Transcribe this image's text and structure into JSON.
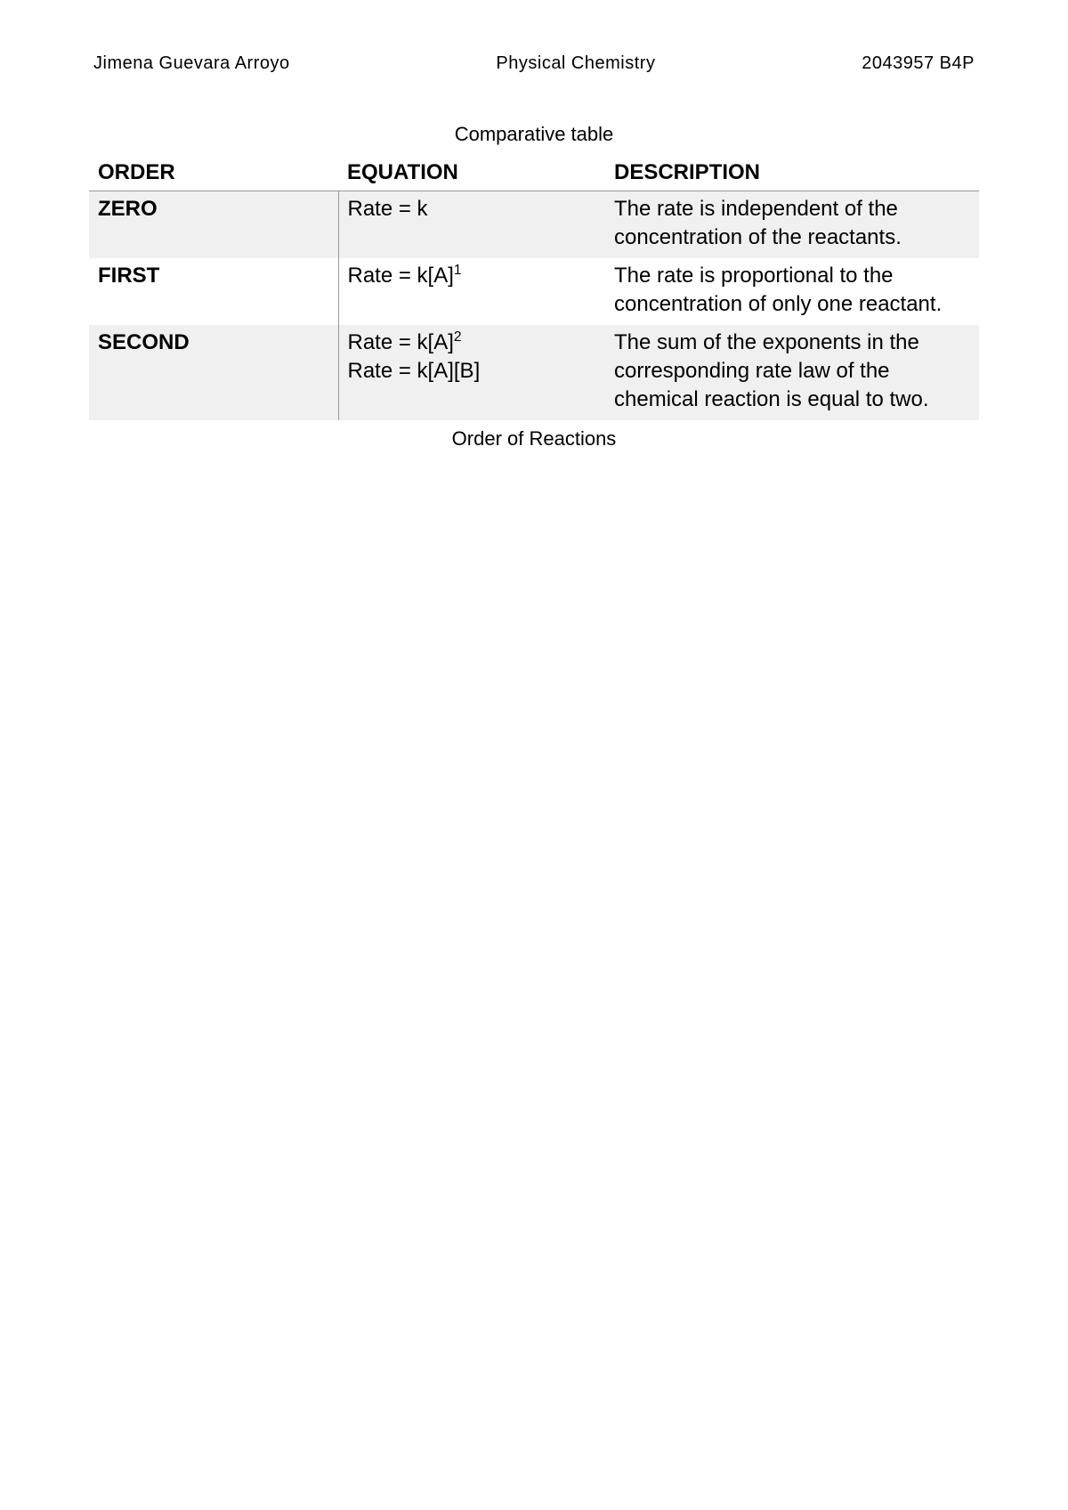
{
  "header": {
    "name": "Jimena Guevara Arroyo",
    "course": "Physical Chemistry",
    "id": "2043957 B4P"
  },
  "title": "Comparative table",
  "table": {
    "columns": [
      "ORDER",
      "EQUATION",
      "DESCRIPTION"
    ],
    "rows": [
      {
        "order": "ZERO",
        "equation_html": "Rate = k",
        "description": "The rate is independent of the concentration of the reactants.",
        "shaded": true
      },
      {
        "order": "FIRST",
        "equation_html": "Rate = k[A]<span class=\"sup\">1</span>",
        "description": "The rate is proportional to the concentration of only one reactant.",
        "shaded": false
      },
      {
        "order": "SECOND",
        "equation_html": "Rate = k[A]<span class=\"sup\">2</span><br>Rate = k[A][B]",
        "description": "The sum of the exponents in the corresponding rate law of the chemical reaction is equal to two.",
        "shaded": true
      }
    ]
  },
  "caption": "Order of Reactions",
  "styles": {
    "background_color": "#ffffff",
    "text_color": "#000000",
    "shaded_row_color": "#f0f0f0",
    "border_color": "#999999",
    "header_fontsize": 20,
    "title_fontsize": 22,
    "table_fontsize": 24,
    "caption_fontsize": 22
  }
}
